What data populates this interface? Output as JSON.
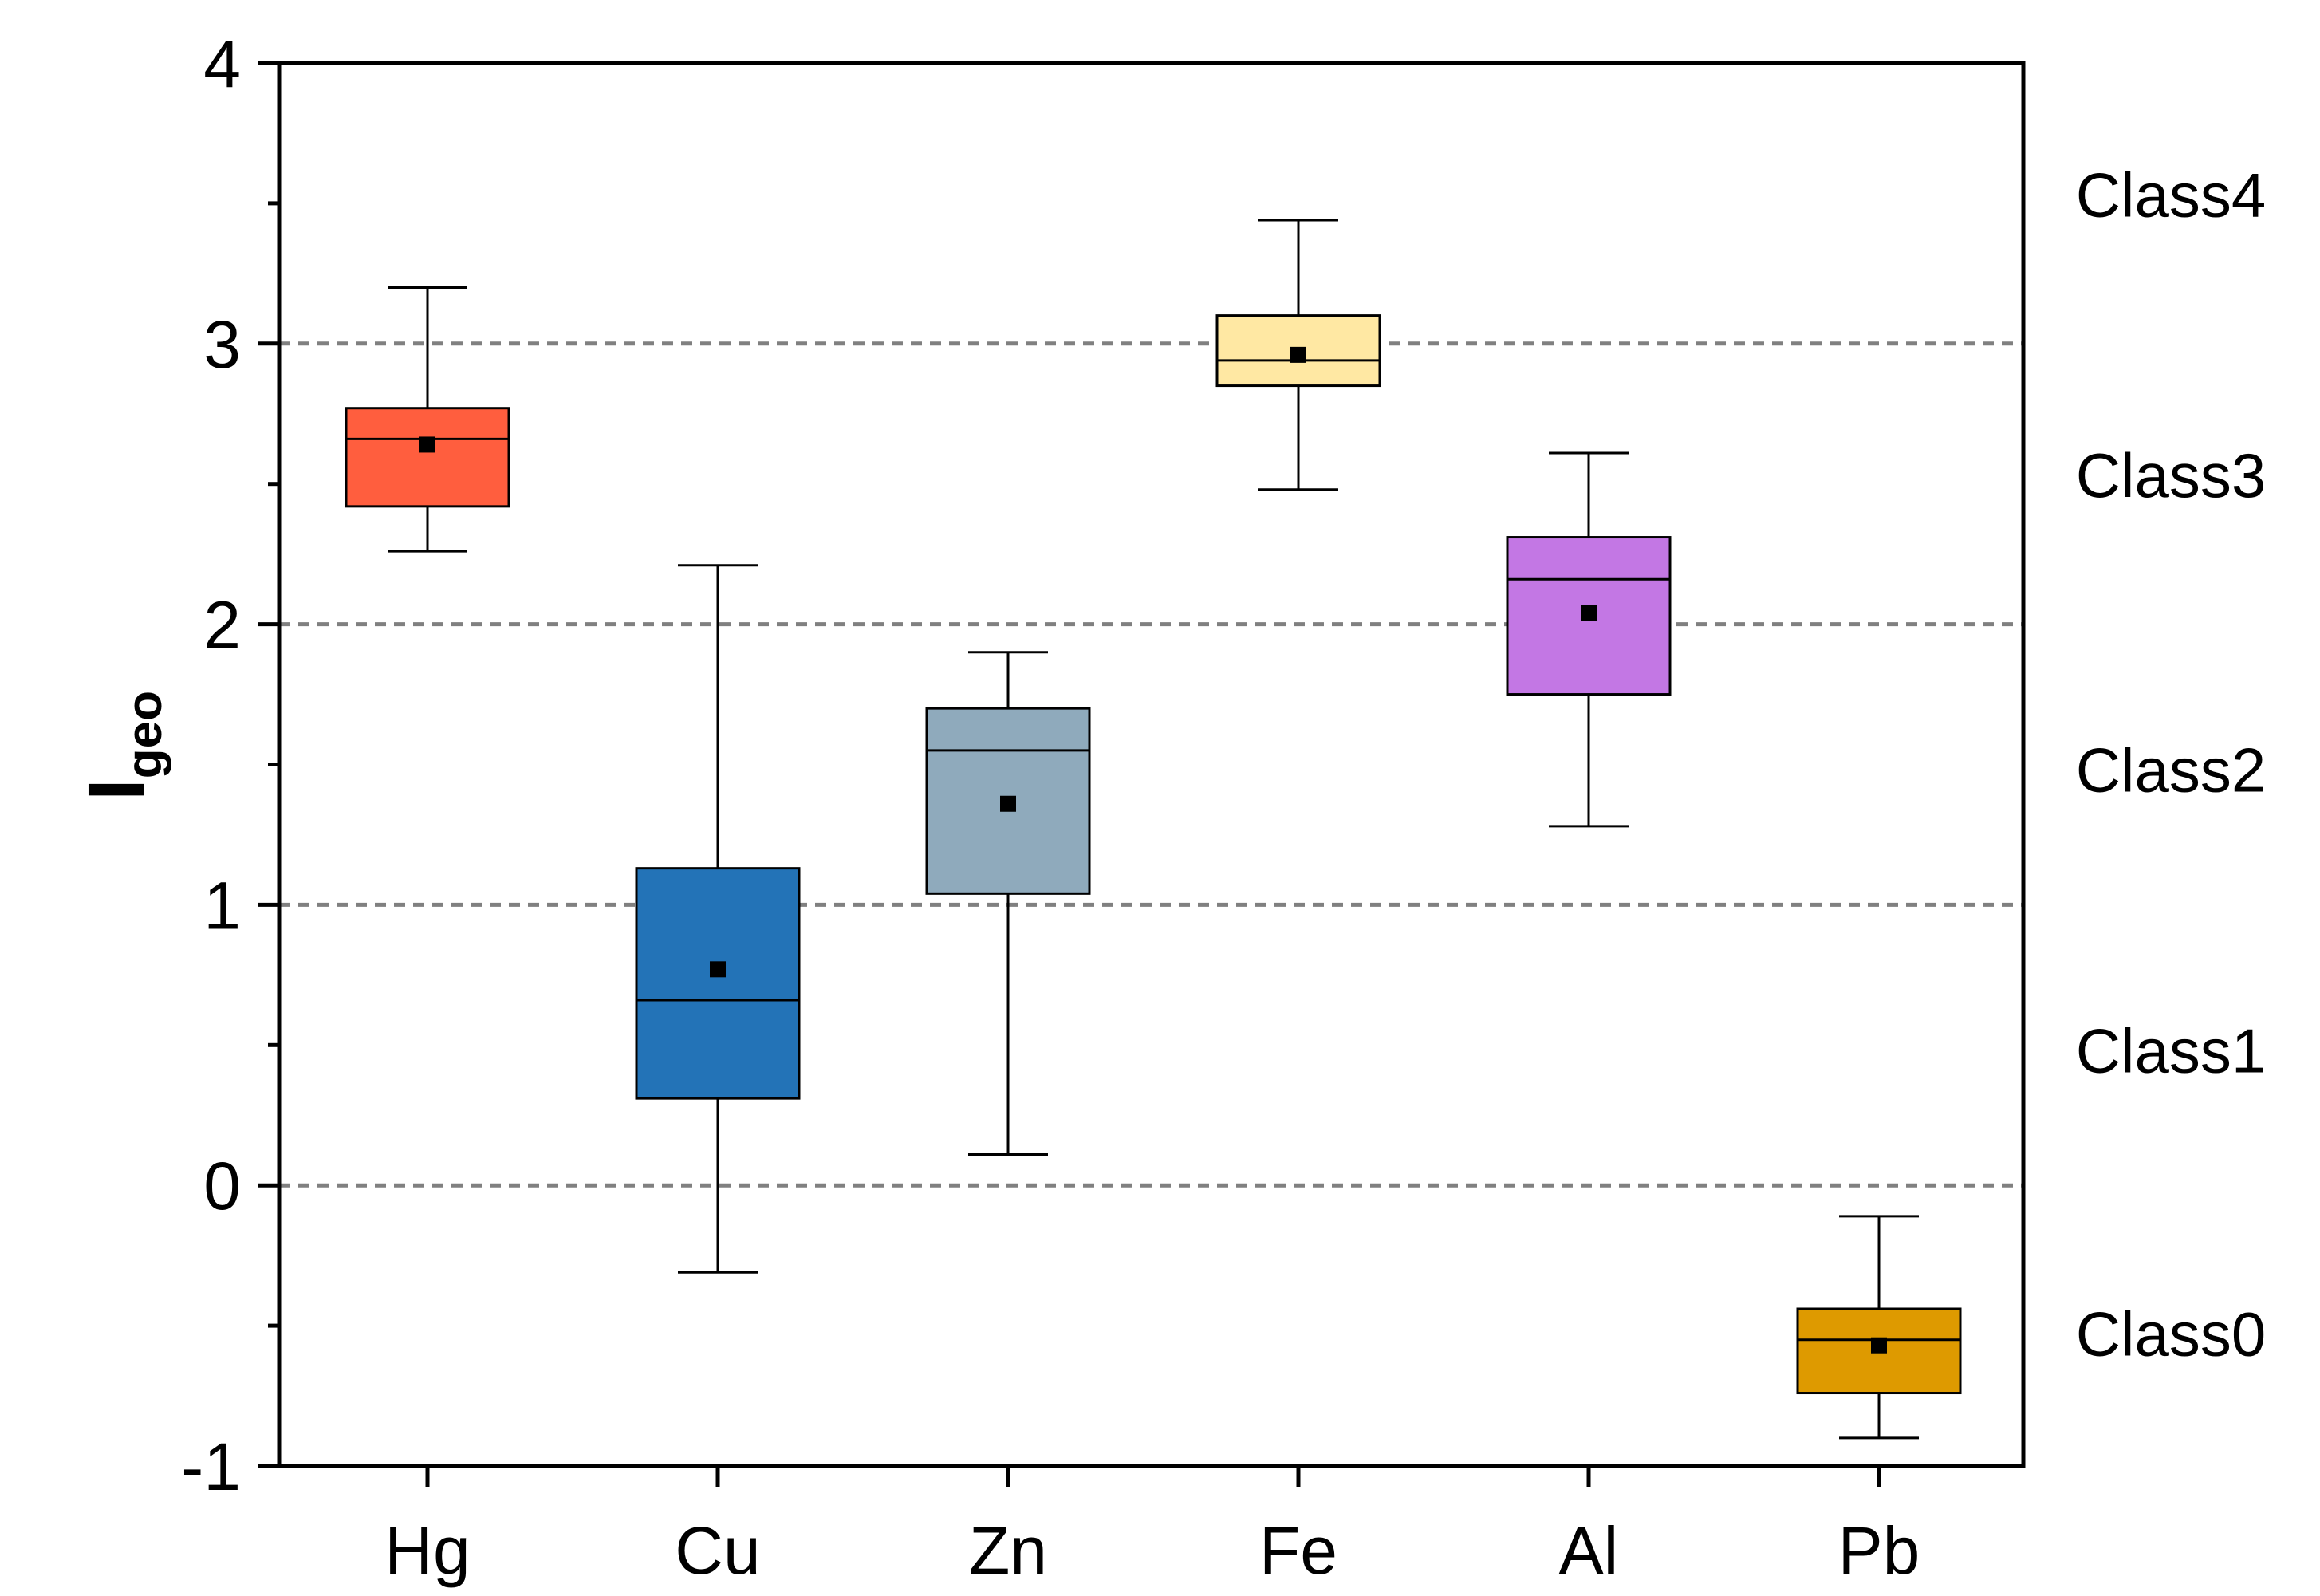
{
  "chart_data": {
    "type": "box",
    "title": "",
    "xlabel": "",
    "ylabel": "I",
    "ylabel_subscript": "geo",
    "ylim": [
      -1,
      4
    ],
    "yticks": [
      "-1",
      "0",
      "1",
      "2",
      "3",
      "4"
    ],
    "reference_lines": [
      0,
      1,
      2,
      3
    ],
    "classes": [
      {
        "label": "Class4",
        "y": 3.53
      },
      {
        "label": "Class3",
        "y": 2.53
      },
      {
        "label": "Class2",
        "y": 1.48
      },
      {
        "label": "Class1",
        "y": 0.48
      },
      {
        "label": "Class0",
        "y": -0.53
      }
    ],
    "categories": [
      "Hg",
      "Cu",
      "Zn",
      "Fe",
      "Al",
      "Pb"
    ],
    "boxes": [
      {
        "name": "Hg",
        "min": 2.26,
        "q1": 2.42,
        "median": 2.66,
        "q3": 2.77,
        "max": 3.2,
        "mean": 2.64,
        "color": "#FF5E3E"
      },
      {
        "name": "Cu",
        "min": -0.31,
        "q1": 0.31,
        "median": 0.66,
        "q3": 1.13,
        "max": 2.21,
        "mean": 0.77,
        "color": "#2373B7"
      },
      {
        "name": "Zn",
        "min": 0.11,
        "q1": 1.04,
        "median": 1.55,
        "q3": 1.7,
        "max": 1.9,
        "mean": 1.36,
        "color": "#8FAABC"
      },
      {
        "name": "Fe",
        "min": 2.48,
        "q1": 2.85,
        "median": 2.94,
        "q3": 3.1,
        "max": 3.44,
        "mean": 2.96,
        "color": "#FFE8A3"
      },
      {
        "name": "Al",
        "min": 1.28,
        "q1": 1.75,
        "median": 2.16,
        "q3": 2.31,
        "max": 2.61,
        "mean": 2.04,
        "color": "#C377E4"
      },
      {
        "name": "Pb",
        "min": -0.9,
        "q1": -0.74,
        "median": -0.55,
        "q3": -0.44,
        "max": -0.11,
        "mean": -0.57,
        "color": "#DE9A00"
      }
    ]
  }
}
